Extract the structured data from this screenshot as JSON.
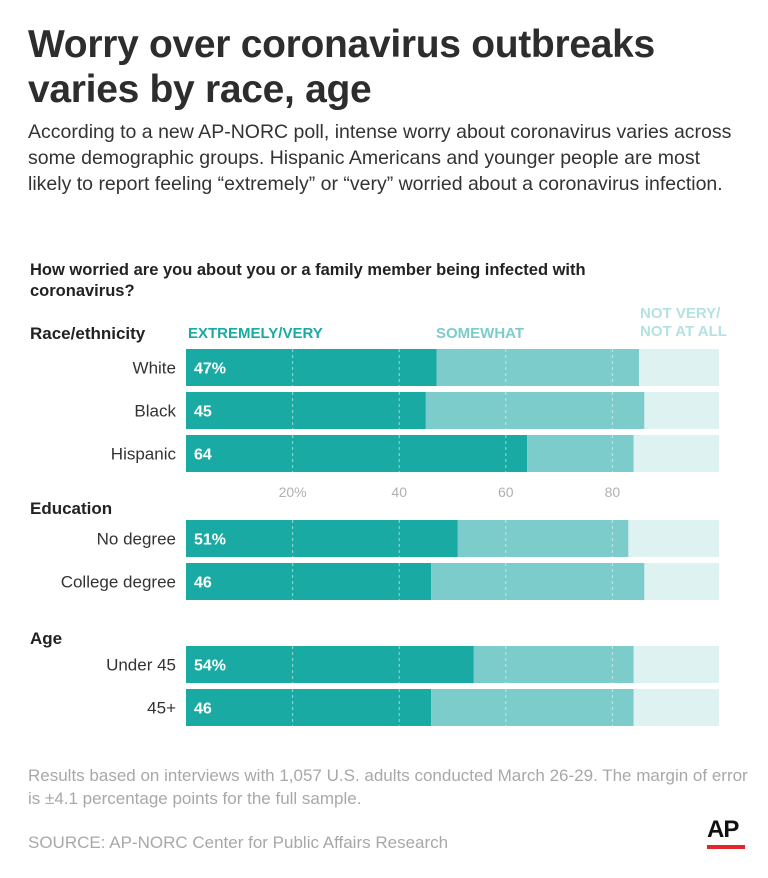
{
  "headline": "Worry over coronavirus outbreaks varies by race, age",
  "dek": "According to a new AP-NORC poll, intense worry about coronavirus varies across some demographic groups. Hispanic Americans and younger people are most likely to report feeling “extremely” or “very” worried about a coronavirus infection.",
  "question": "How worried are you about you or a family member being infected with coronavirus?",
  "legend": {
    "extremely": "EXTREMELY/VERY",
    "somewhat": "SOMEWHAT",
    "notvery_line1": "NOT VERY/",
    "notvery_line2": "NOT AT ALL"
  },
  "colors": {
    "extremely": "#19aba3",
    "somewhat": "#7ccccb",
    "notvery": "#def2f2",
    "grid": "#ffffff",
    "axis_text": "#b0b0b0",
    "bar_label": "#ffffff"
  },
  "chart_data": {
    "type": "bar",
    "orientation": "horizontal",
    "stacked": true,
    "xlim": [
      0,
      100
    ],
    "xticks": [
      20,
      40,
      60,
      80
    ],
    "xtick_labels": [
      "20%",
      "40",
      "60",
      "80"
    ],
    "grid": true,
    "series": [
      {
        "name": "EXTREMELY/VERY",
        "key": "extremely"
      },
      {
        "name": "SOMEWHAT",
        "key": "somewhat"
      },
      {
        "name": "NOT VERY/ NOT AT ALL",
        "key": "notvery"
      }
    ],
    "groups": [
      {
        "name": "Race/ethnicity",
        "rows": [
          {
            "category": "White",
            "extremely": 47,
            "somewhat": 38,
            "notvery": 15,
            "label": "47%"
          },
          {
            "category": "Black",
            "extremely": 45,
            "somewhat": 41,
            "notvery": 14,
            "label": "45"
          },
          {
            "category": "Hispanic",
            "extremely": 64,
            "somewhat": 20,
            "notvery": 16,
            "label": "64"
          }
        ]
      },
      {
        "name": "Education",
        "rows": [
          {
            "category": "No degree",
            "extremely": 51,
            "somewhat": 32,
            "notvery": 17,
            "label": "51%"
          },
          {
            "category": "College degree",
            "extremely": 46,
            "somewhat": 40,
            "notvery": 14,
            "label": "46"
          }
        ]
      },
      {
        "name": "Age",
        "rows": [
          {
            "category": "Under 45",
            "extremely": 54,
            "somewhat": 30,
            "notvery": 16,
            "label": "54%"
          },
          {
            "category": "45+",
            "extremely": 46,
            "somewhat": 38,
            "notvery": 16,
            "label": "46"
          }
        ]
      }
    ]
  },
  "note": "Results based on interviews with 1,057 U.S. adults conducted March 26-29. The margin of error is ±4.1 percentage points for the full sample.",
  "source": "SOURCE: AP-NORC Center for Public Affairs Research",
  "logo_text": "AP"
}
